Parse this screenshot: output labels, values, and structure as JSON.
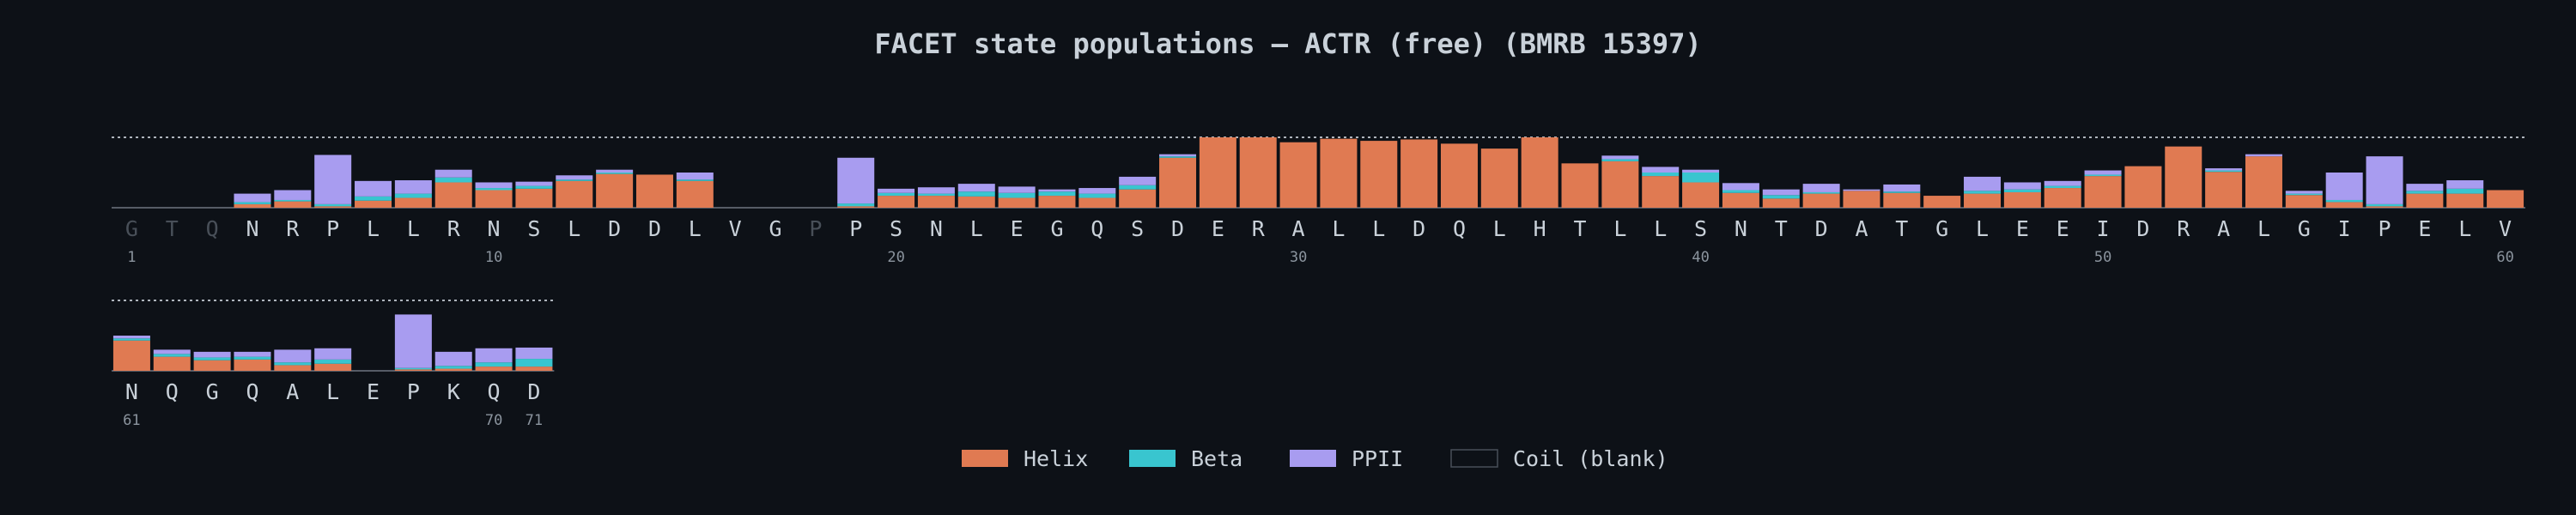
{
  "chart_data": {
    "type": "bar",
    "title": "FACET state populations — ACTR (free) (BMRB 15397)",
    "stacked": true,
    "ylim": [
      0,
      1
    ],
    "colors": {
      "Helix": "#e07a52",
      "Beta": "#39c5cf",
      "PPII": "#a89cf0",
      "Coil": "#0d1117",
      "background": "#0d1117",
      "residue_label": "#c9d1d9",
      "residue_label_dim": "#484f58",
      "number_label": "#8b949e",
      "reference_line": "#c9d1d9"
    },
    "legend": {
      "position": "bottom-center",
      "items": [
        {
          "key": "Helix",
          "label": "Helix"
        },
        {
          "key": "Beta",
          "label": "Beta"
        },
        {
          "key": "PPII",
          "label": "PPII"
        },
        {
          "key": "Coil",
          "label": "Coil (blank)"
        }
      ]
    },
    "residues": [
      {
        "n": 1,
        "aa": "G",
        "helix": 0,
        "beta": 0,
        "ppii": 0,
        "dim": true
      },
      {
        "n": 2,
        "aa": "T",
        "helix": 0,
        "beta": 0,
        "ppii": 0,
        "dim": true
      },
      {
        "n": 3,
        "aa": "Q",
        "helix": 0,
        "beta": 0,
        "ppii": 0,
        "dim": true
      },
      {
        "n": 4,
        "aa": "N",
        "helix": 0.05,
        "beta": 0.03,
        "ppii": 0.12
      },
      {
        "n": 5,
        "aa": "R",
        "helix": 0.09,
        "beta": 0.02,
        "ppii": 0.14
      },
      {
        "n": 6,
        "aa": "P",
        "helix": 0.02,
        "beta": 0.03,
        "ppii": 0.7
      },
      {
        "n": 7,
        "aa": "L",
        "helix": 0.1,
        "beta": 0.06,
        "ppii": 0.22
      },
      {
        "n": 8,
        "aa": "L",
        "helix": 0.14,
        "beta": 0.06,
        "ppii": 0.19
      },
      {
        "n": 9,
        "aa": "R",
        "helix": 0.36,
        "beta": 0.07,
        "ppii": 0.11
      },
      {
        "n": 10,
        "aa": "N",
        "helix": 0.25,
        "beta": 0.03,
        "ppii": 0.08
      },
      {
        "n": 11,
        "aa": "S",
        "helix": 0.27,
        "beta": 0.04,
        "ppii": 0.06
      },
      {
        "n": 12,
        "aa": "L",
        "helix": 0.38,
        "beta": 0.02,
        "ppii": 0.06
      },
      {
        "n": 13,
        "aa": "D",
        "helix": 0.48,
        "beta": 0.02,
        "ppii": 0.04
      },
      {
        "n": 14,
        "aa": "D",
        "helix": 0.47,
        "beta": 0,
        "ppii": 0
      },
      {
        "n": 15,
        "aa": "L",
        "helix": 0.38,
        "beta": 0.02,
        "ppii": 0.1
      },
      {
        "n": 16,
        "aa": "V",
        "helix": 0,
        "beta": 0,
        "ppii": 0
      },
      {
        "n": 17,
        "aa": "G",
        "helix": 0,
        "beta": 0,
        "ppii": 0
      },
      {
        "n": 18,
        "aa": "P",
        "helix": 0,
        "beta": 0,
        "ppii": 0,
        "dim": true
      },
      {
        "n": 19,
        "aa": "P",
        "helix": 0.02,
        "beta": 0.04,
        "ppii": 0.65
      },
      {
        "n": 20,
        "aa": "S",
        "helix": 0.17,
        "beta": 0.04,
        "ppii": 0.06
      },
      {
        "n": 21,
        "aa": "N",
        "helix": 0.17,
        "beta": 0.03,
        "ppii": 0.09
      },
      {
        "n": 22,
        "aa": "L",
        "helix": 0.16,
        "beta": 0.07,
        "ppii": 0.11
      },
      {
        "n": 23,
        "aa": "E",
        "helix": 0.14,
        "beta": 0.07,
        "ppii": 0.09
      },
      {
        "n": 24,
        "aa": "G",
        "helix": 0.17,
        "beta": 0.06,
        "ppii": 0.03
      },
      {
        "n": 25,
        "aa": "Q",
        "helix": 0.14,
        "beta": 0.06,
        "ppii": 0.08
      },
      {
        "n": 26,
        "aa": "S",
        "helix": 0.26,
        "beta": 0.06,
        "ppii": 0.12
      },
      {
        "n": 27,
        "aa": "D",
        "helix": 0.71,
        "beta": 0.02,
        "ppii": 0.03
      },
      {
        "n": 28,
        "aa": "E",
        "helix": 1.0,
        "beta": 0,
        "ppii": 0
      },
      {
        "n": 29,
        "aa": "R",
        "helix": 1.0,
        "beta": 0,
        "ppii": 0
      },
      {
        "n": 30,
        "aa": "A",
        "helix": 0.93,
        "beta": 0,
        "ppii": 0
      },
      {
        "n": 31,
        "aa": "L",
        "helix": 0.98,
        "beta": 0,
        "ppii": 0
      },
      {
        "n": 32,
        "aa": "L",
        "helix": 0.95,
        "beta": 0,
        "ppii": 0
      },
      {
        "n": 33,
        "aa": "D",
        "helix": 0.97,
        "beta": 0,
        "ppii": 0
      },
      {
        "n": 34,
        "aa": "Q",
        "helix": 0.91,
        "beta": 0,
        "ppii": 0
      },
      {
        "n": 35,
        "aa": "L",
        "helix": 0.84,
        "beta": 0,
        "ppii": 0
      },
      {
        "n": 36,
        "aa": "H",
        "helix": 1.0,
        "beta": 0,
        "ppii": 0
      },
      {
        "n": 37,
        "aa": "T",
        "helix": 0.63,
        "beta": 0,
        "ppii": 0
      },
      {
        "n": 38,
        "aa": "L",
        "helix": 0.66,
        "beta": 0.03,
        "ppii": 0.05
      },
      {
        "n": 39,
        "aa": "L",
        "helix": 0.45,
        "beta": 0.05,
        "ppii": 0.08
      },
      {
        "n": 40,
        "aa": "S",
        "helix": 0.36,
        "beta": 0.14,
        "ppii": 0.04
      },
      {
        "n": 41,
        "aa": "N",
        "helix": 0.21,
        "beta": 0.04,
        "ppii": 0.1
      },
      {
        "n": 42,
        "aa": "T",
        "helix": 0.13,
        "beta": 0.05,
        "ppii": 0.08
      },
      {
        "n": 43,
        "aa": "D",
        "helix": 0.2,
        "beta": 0.02,
        "ppii": 0.12
      },
      {
        "n": 44,
        "aa": "A",
        "helix": 0.24,
        "beta": 0,
        "ppii": 0.02
      },
      {
        "n": 45,
        "aa": "T",
        "helix": 0.21,
        "beta": 0.02,
        "ppii": 0.1
      },
      {
        "n": 46,
        "aa": "G",
        "helix": 0.17,
        "beta": 0,
        "ppii": 0
      },
      {
        "n": 47,
        "aa": "L",
        "helix": 0.2,
        "beta": 0.04,
        "ppii": 0.2
      },
      {
        "n": 48,
        "aa": "E",
        "helix": 0.22,
        "beta": 0.04,
        "ppii": 0.1
      },
      {
        "n": 49,
        "aa": "E",
        "helix": 0.28,
        "beta": 0.03,
        "ppii": 0.07
      },
      {
        "n": 50,
        "aa": "I",
        "helix": 0.45,
        "beta": 0.02,
        "ppii": 0.06
      },
      {
        "n": 51,
        "aa": "D",
        "helix": 0.59,
        "beta": 0,
        "ppii": 0
      },
      {
        "n": 52,
        "aa": "R",
        "helix": 0.87,
        "beta": 0,
        "ppii": 0
      },
      {
        "n": 53,
        "aa": "A",
        "helix": 0.51,
        "beta": 0.02,
        "ppii": 0.03
      },
      {
        "n": 54,
        "aa": "L",
        "helix": 0.73,
        "beta": 0,
        "ppii": 0.03
      },
      {
        "n": 55,
        "aa": "G",
        "helix": 0.18,
        "beta": 0.02,
        "ppii": 0.04
      },
      {
        "n": 56,
        "aa": "I",
        "helix": 0.08,
        "beta": 0.03,
        "ppii": 0.39
      },
      {
        "n": 57,
        "aa": "P",
        "helix": 0.02,
        "beta": 0.03,
        "ppii": 0.68
      },
      {
        "n": 58,
        "aa": "E",
        "helix": 0.2,
        "beta": 0.04,
        "ppii": 0.1
      },
      {
        "n": 59,
        "aa": "L",
        "helix": 0.2,
        "beta": 0.07,
        "ppii": 0.12
      },
      {
        "n": 60,
        "aa": "V",
        "helix": 0.25,
        "beta": 0,
        "ppii": 0
      },
      {
        "n": 61,
        "aa": "N",
        "helix": 0.43,
        "beta": 0.03,
        "ppii": 0.04
      },
      {
        "n": 62,
        "aa": "Q",
        "helix": 0.2,
        "beta": 0.04,
        "ppii": 0.06
      },
      {
        "n": 63,
        "aa": "G",
        "helix": 0.15,
        "beta": 0.04,
        "ppii": 0.08
      },
      {
        "n": 64,
        "aa": "Q",
        "helix": 0.16,
        "beta": 0.04,
        "ppii": 0.07
      },
      {
        "n": 65,
        "aa": "A",
        "helix": 0.08,
        "beta": 0.04,
        "ppii": 0.18
      },
      {
        "n": 66,
        "aa": "L",
        "helix": 0.1,
        "beta": 0.06,
        "ppii": 0.16
      },
      {
        "n": 67,
        "aa": "E",
        "helix": 0,
        "beta": 0,
        "ppii": 0
      },
      {
        "n": 68,
        "aa": "P",
        "helix": 0.02,
        "beta": 0.02,
        "ppii": 0.76
      },
      {
        "n": 69,
        "aa": "K",
        "helix": 0.03,
        "beta": 0.04,
        "ppii": 0.2
      },
      {
        "n": 70,
        "aa": "Q",
        "helix": 0.06,
        "beta": 0.06,
        "ppii": 0.2
      },
      {
        "n": 71,
        "aa": "D",
        "helix": 0.06,
        "beta": 0.11,
        "ppii": 0.16
      }
    ],
    "numbered_residues": [
      1,
      10,
      20,
      30,
      40,
      50,
      60,
      61,
      70,
      71
    ]
  }
}
